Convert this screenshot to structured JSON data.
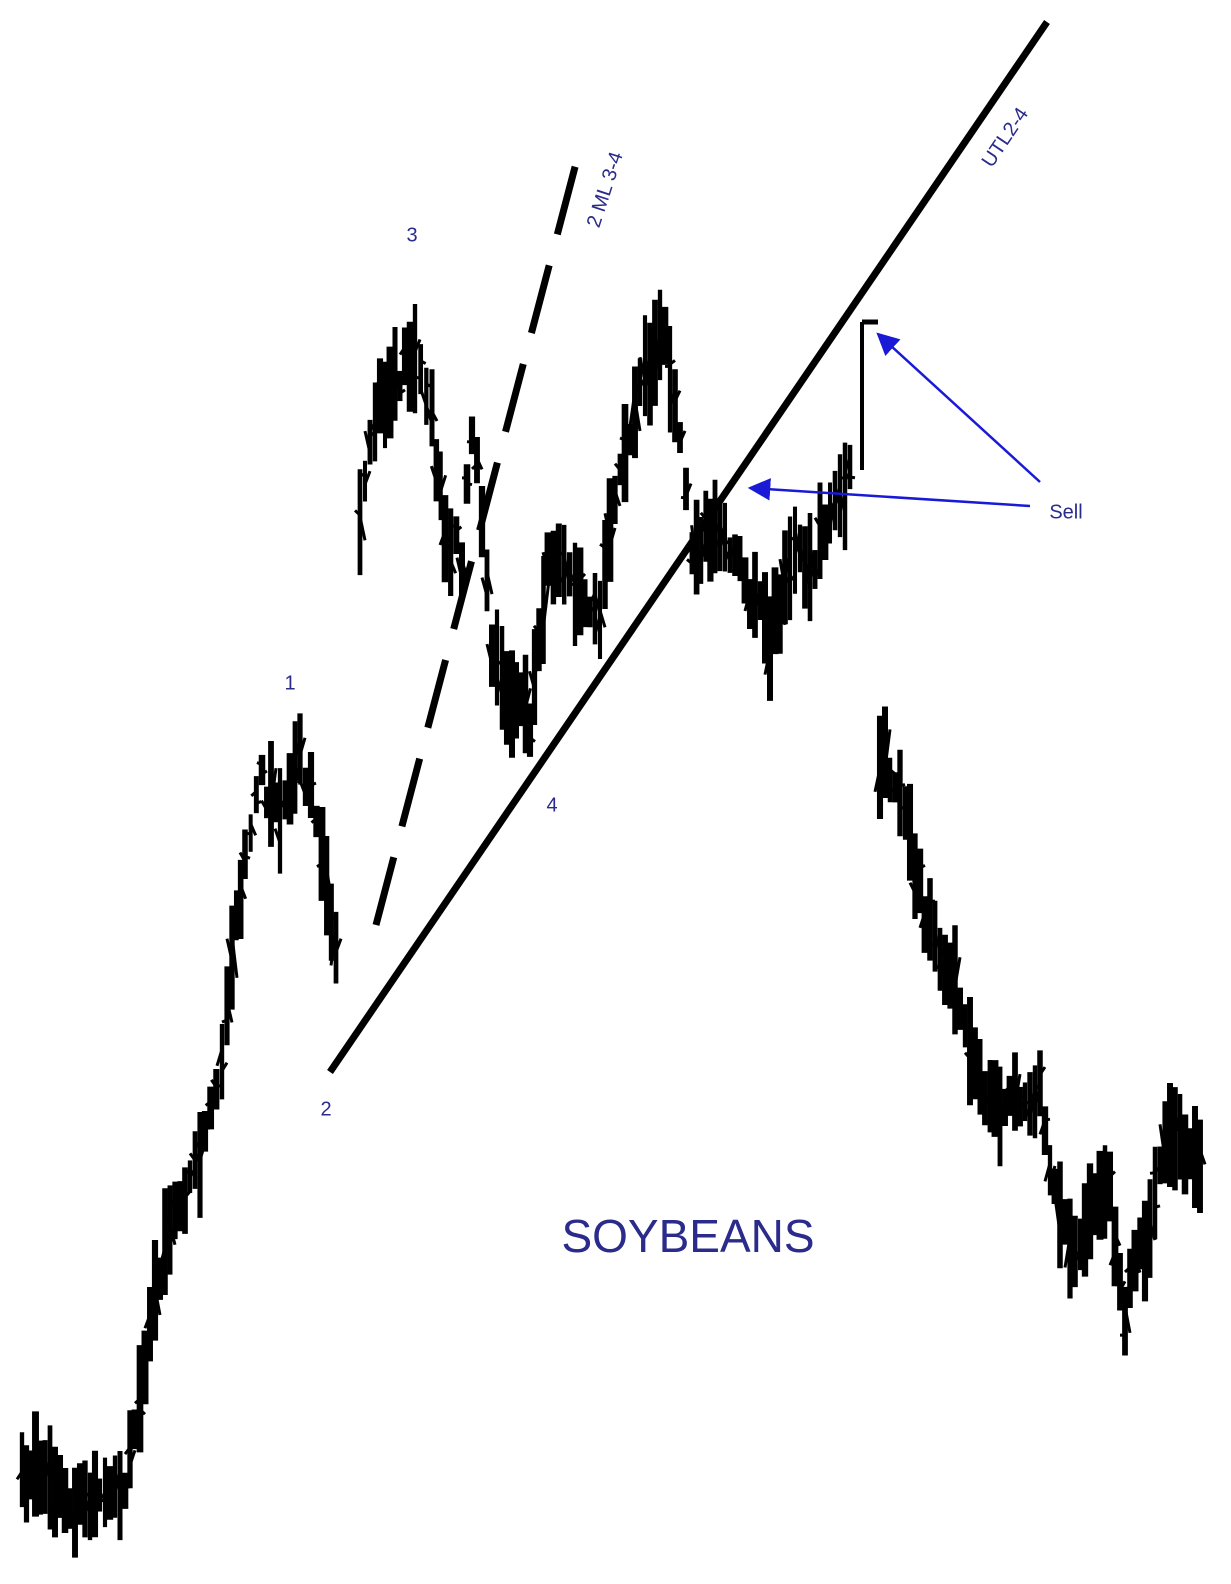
{
  "title": "SOYBEANS",
  "pivots": [
    "1",
    "2",
    "3",
    "4"
  ],
  "lines": [
    "2 ML 3-4",
    "UTL2-4"
  ],
  "callout": "Sell"
}
